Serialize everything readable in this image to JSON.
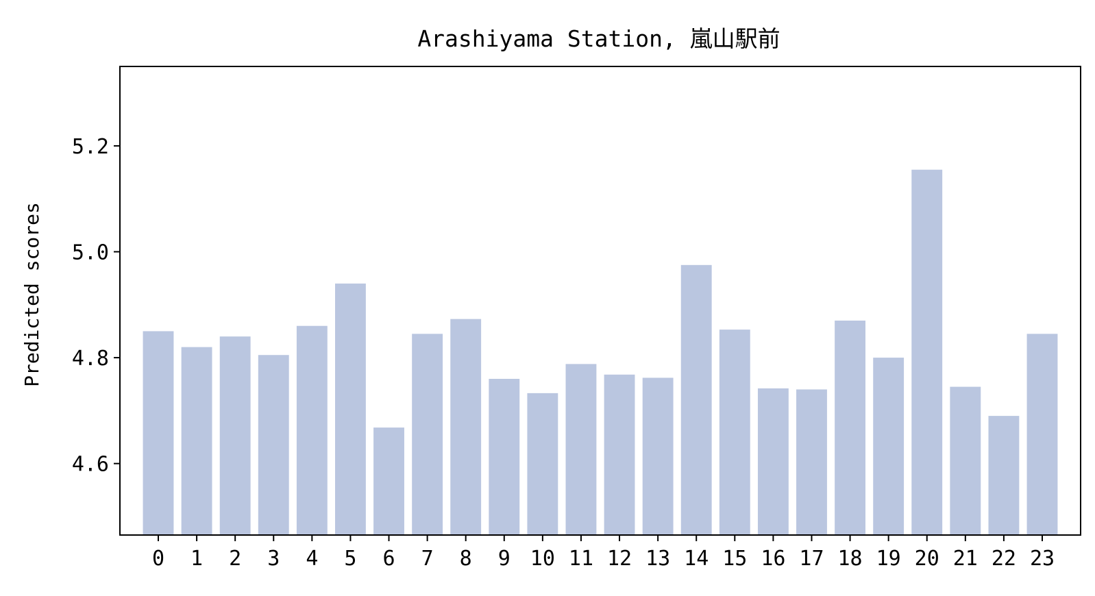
{
  "chart_data": {
    "type": "bar",
    "title": "Arashiyama Station, 嵐山駅前",
    "xlabel": "",
    "ylabel": "Predicted scores",
    "categories": [
      "0",
      "1",
      "2",
      "3",
      "4",
      "5",
      "6",
      "7",
      "8",
      "9",
      "10",
      "11",
      "12",
      "13",
      "14",
      "15",
      "16",
      "17",
      "18",
      "19",
      "20",
      "21",
      "22",
      "23"
    ],
    "values": [
      4.85,
      4.82,
      4.84,
      4.805,
      4.86,
      4.94,
      4.668,
      4.845,
      4.873,
      4.76,
      4.733,
      4.788,
      4.768,
      4.762,
      4.975,
      4.853,
      4.742,
      4.74,
      4.87,
      4.8,
      5.155,
      4.745,
      4.69,
      4.845
    ],
    "ylim": [
      4.465,
      5.35
    ],
    "yticks": [
      "4.6",
      "4.8",
      "5.0",
      "5.2"
    ],
    "grid": false,
    "bar_color": "#bac6e0"
  }
}
